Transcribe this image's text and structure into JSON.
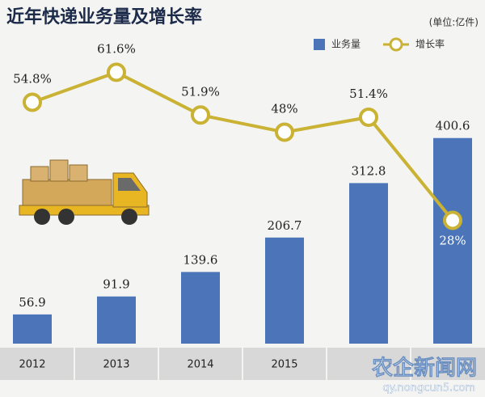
{
  "chart_data": {
    "type": "combo",
    "title": "近年快递业务量及增长率",
    "unit": "(单位:亿件)",
    "categories": [
      "2012",
      "2013",
      "2014",
      "2015",
      null,
      null
    ],
    "series": [
      {
        "name": "业务量",
        "type": "bar",
        "color": "#4b74b9",
        "values": [
          56.9,
          91.9,
          139.6,
          206.7,
          312.8,
          400.6
        ]
      },
      {
        "name": "增长率",
        "type": "line",
        "axis": "y2",
        "color": "#c9b234",
        "values": [
          54.8,
          61.6,
          51.9,
          48,
          51.4,
          28
        ],
        "value_labels": [
          "54.8%",
          "61.6%",
          "51.9%",
          "48%",
          "51.4%",
          "28%"
        ]
      }
    ],
    "ylim": [
      0,
      575
    ],
    "y2lim": [
      0,
      67
    ]
  },
  "watermark": {
    "name": "农企新闻网",
    "url": "qy.nongcun5.com"
  }
}
